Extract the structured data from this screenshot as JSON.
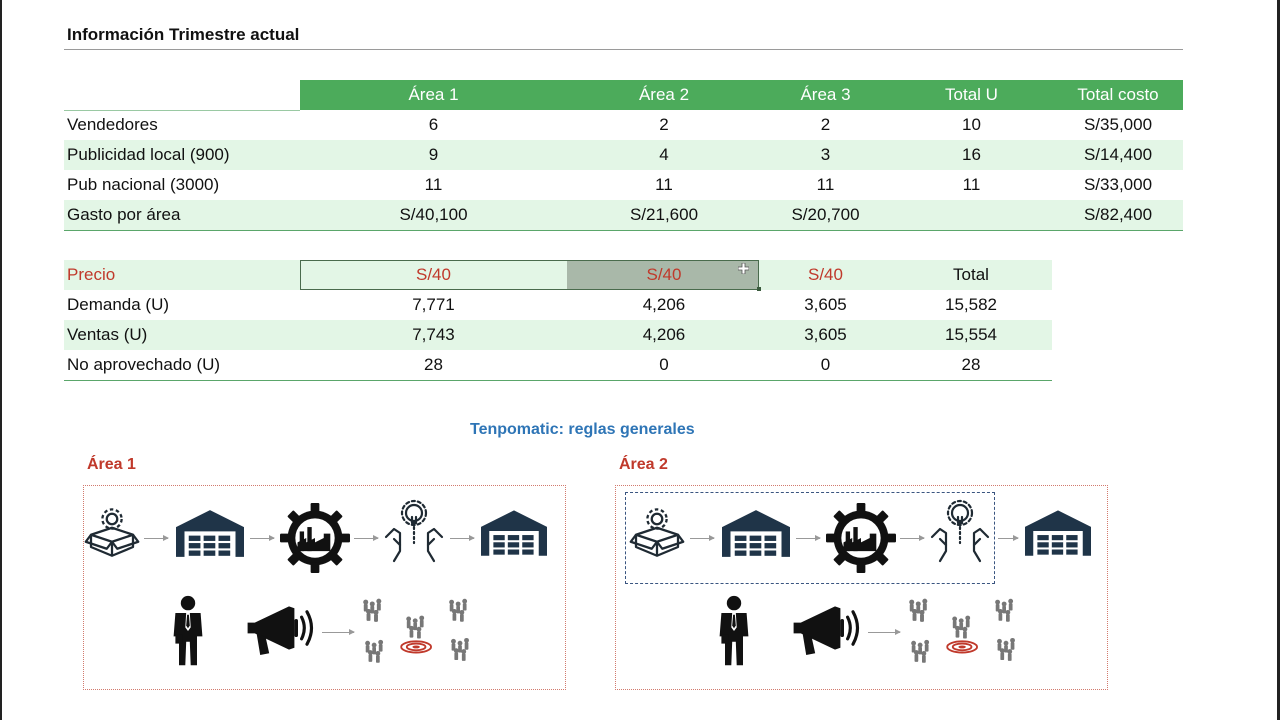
{
  "title": "Información Trimestre actual",
  "table1": {
    "headers": [
      "Área 1",
      "Área 2",
      "Área 3",
      "Total U",
      "Total costo"
    ],
    "rows": [
      {
        "label": "Vendedores",
        "values": [
          "6",
          "2",
          "2",
          "10",
          "S/35,000"
        ]
      },
      {
        "label": "Publicidad local (900)",
        "values": [
          "9",
          "4",
          "3",
          "16",
          "S/14,400"
        ]
      },
      {
        "label": "Pub nacional (3000)",
        "values": [
          "11",
          "11",
          "11",
          "11",
          "S/33,000"
        ]
      },
      {
        "label": "Gasto por área",
        "values": [
          "S/40,100",
          "S/21,600",
          "S/20,700",
          "",
          "S/82,400"
        ]
      }
    ]
  },
  "table2": {
    "price_label": "Precio",
    "prices": [
      "S/40",
      "S/40",
      "S/40"
    ],
    "total_label": "Total",
    "rows": [
      {
        "label": "Demanda (U)",
        "values": [
          "7,771",
          "4,206",
          "3,605",
          "15,582"
        ]
      },
      {
        "label": "Ventas (U)",
        "values": [
          "7,743",
          "4,206",
          "3,605",
          "15,554"
        ]
      },
      {
        "label": "No aprovechado (U)",
        "values": [
          "28",
          "0",
          "0",
          "28"
        ]
      }
    ]
  },
  "diagram": {
    "title": "Tenpomatic: reglas generales",
    "area1_label": "Área 1",
    "area2_label": "Área 2",
    "icons": [
      "box-gear-icon",
      "warehouse-icon",
      "factory-gear-icon",
      "idea-hands-icon",
      "warehouse-icon",
      "salesperson-icon",
      "megaphone-icon",
      "target-market-icon"
    ]
  },
  "colors": {
    "header_green": "#4cab5b",
    "stripe_green": "#e3f6e6",
    "price_red": "#c0392b",
    "diagram_blue": "#2e75b6",
    "icon_navy": "#1f3448"
  }
}
